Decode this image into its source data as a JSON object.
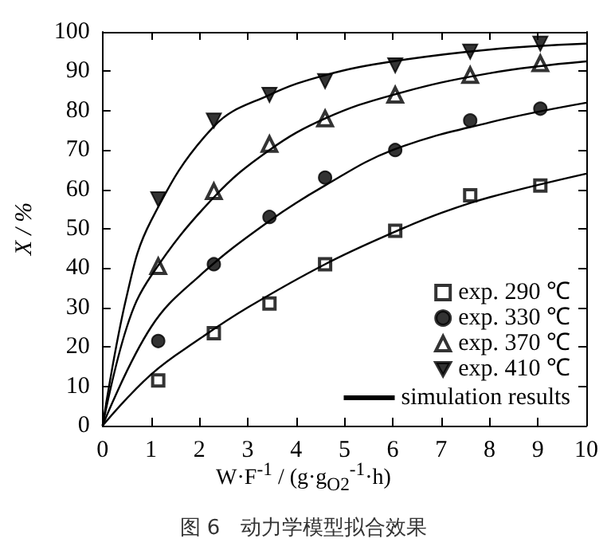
{
  "chart_data": {
    "type": "scatter",
    "xlabel": "W·F$^{-1}$ / (g·g$_{O2}$$^{-1}$·h)",
    "ylabel": "X / %",
    "annotations": [
      "图 6　动力学模型拟合效果"
    ],
    "xlim": [
      0,
      10
    ],
    "xticks": [
      0,
      1,
      2,
      3,
      4,
      5,
      6,
      7,
      8,
      9,
      10
    ],
    "ylim": [
      0,
      100
    ],
    "yticks": [
      0,
      10,
      20,
      30,
      40,
      50,
      60,
      70,
      80,
      90,
      100
    ],
    "grid": false,
    "legend": "bottom right",
    "series": [
      {
        "name": "exp. 290 ℃",
        "color": "#000000",
        "marker": "square",
        "x": [
          1.15,
          2.3,
          3.45,
          4.6,
          6.05,
          7.6,
          9.05
        ],
        "values": [
          11.5,
          23.5,
          31,
          41,
          49.5,
          58.5,
          61
        ]
      },
      {
        "name": "exp. 330 ℃",
        "color": "#000000",
        "marker": "circle",
        "x": [
          1.15,
          2.3,
          3.45,
          4.6,
          6.05,
          7.6,
          9.05
        ],
        "values": [
          21.5,
          41,
          53,
          63,
          70,
          77.5,
          80.5
        ]
      },
      {
        "name": "exp. 370 ℃",
        "color": "#000000",
        "marker": "triangle",
        "x": [
          1.15,
          2.3,
          3.45,
          4.6,
          6.05,
          7.6,
          9.05
        ],
        "values": [
          40.5,
          59.5,
          71.5,
          78,
          84,
          89,
          92
        ]
      },
      {
        "name": "exp. 410 ℃",
        "color": "#000000",
        "marker": "triangle-down",
        "x": [
          1.15,
          2.3,
          3.45,
          4.6,
          6.05,
          7.6,
          9.05
        ],
        "values": [
          57.5,
          77.5,
          84,
          87.5,
          91.5,
          95,
          97
        ]
      },
      {
        "name": "simulation results",
        "type": "line",
        "color": "#000000",
        "marker": "none",
        "x": [
          0,
          1,
          2,
          3,
          4.6,
          6,
          7,
          8,
          10
        ],
        "values": [
          0,
          13,
          22,
          30,
          41,
          49,
          54,
          58,
          64
        ]
      },
      {
        "type": "line",
        "color": "#000000",
        "marker": "none",
        "x": [
          0,
          1,
          2,
          3.45,
          4.6,
          6,
          8,
          10
        ],
        "values": [
          0,
          25,
          38,
          52,
          61,
          70,
          77,
          82
        ]
      },
      {
        "type": "line",
        "color": "#000000",
        "marker": "none",
        "x": [
          0,
          0.5,
          1,
          2.3,
          3.45,
          4.6,
          6,
          8,
          10
        ],
        "values": [
          0,
          25,
          38,
          58,
          70,
          78,
          84,
          89.5,
          92.5
        ]
      },
      {
        "type": "line",
        "color": "#000000",
        "marker": "none",
        "x": [
          0,
          0.5,
          1,
          2.3,
          3.45,
          4.6,
          6,
          8,
          10
        ],
        "values": [
          0,
          33,
          52,
          76,
          84,
          89,
          92.5,
          95.5,
          97
        ]
      }
    ]
  }
}
